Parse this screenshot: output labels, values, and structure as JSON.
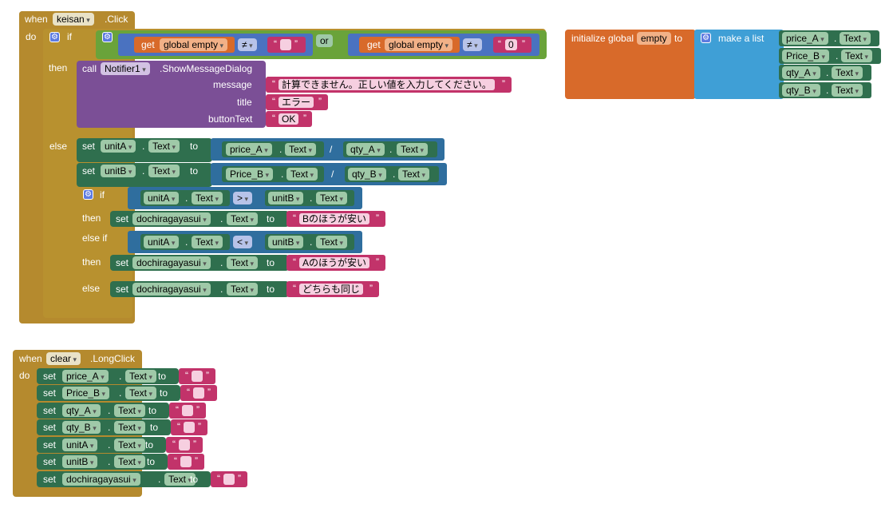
{
  "ev_keisan": {
    "when": "when",
    "comp": "keisan",
    "event": ".Click",
    "do": "do"
  },
  "if1": {
    "if": "if",
    "then": "then",
    "else": "else",
    "get": "get",
    "global_empty": "global empty",
    "neq": "≠",
    "or": "or",
    "zero": "0"
  },
  "notif": {
    "call": "call",
    "comp": "Notifier1",
    "method": ".ShowMessageDialog",
    "message": "message",
    "title": "title",
    "button": "buttonText",
    "message_val": "計算できません。正しい値を入力してください。",
    "title_val": "エラー",
    "button_val": "OK"
  },
  "calc": {
    "set": "set",
    "to": "to",
    "unitA": "unitA",
    "unitB": "unitB",
    "text": "Text",
    "price_A": "price_A",
    "Price_B": "Price_B",
    "qty_A": "qty_A",
    "qty_B": "qty_B",
    "div": "/"
  },
  "if2": {
    "if": "if",
    "then": "then",
    "elseif": "else if",
    "else": "else",
    "gt": ">",
    "lt": "<",
    "target": "dochiragayasui",
    "b_cheap": "Bのほうが安い",
    "a_cheap": "Aのほうが安い",
    "same": "どちらも同じ"
  },
  "init": {
    "initialize": "initialize global",
    "name": "empty",
    "to": "to",
    "make_list": "make a list",
    "items": [
      "price_A",
      "Price_B",
      "qty_A",
      "qty_B"
    ],
    "text": "Text"
  },
  "ev_clear": {
    "when": "when",
    "comp": "clear",
    "event": ".LongClick",
    "do": "do",
    "items": [
      "price_A",
      "Price_B",
      "qty_A",
      "qty_B",
      "unitA",
      "unitB",
      "dochiragayasui"
    ],
    "set": "set",
    "to": "to",
    "text": "Text"
  },
  "colors": {
    "event": "#b58a2e",
    "text": "#c2336a",
    "set": "#2f6f4e",
    "call": "#7b4f96",
    "variable": "#d86a2a",
    "list": "#3f9fd6"
  }
}
